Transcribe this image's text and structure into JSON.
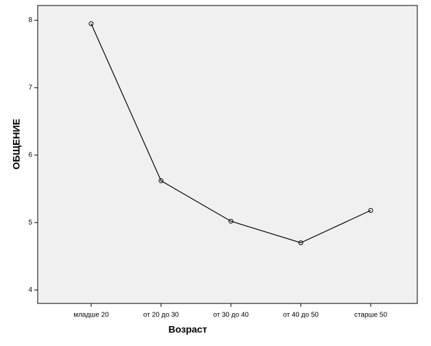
{
  "chart_data": {
    "type": "line",
    "x_label": "Возраст",
    "y_label": "ОБЩЕНИЕ",
    "categories": [
      "младше 20",
      "от 20 до 30",
      "от 30 до 40",
      "от 40 до 50",
      "старше 50"
    ],
    "values": [
      7.95,
      5.62,
      5.02,
      4.7,
      5.18
    ],
    "color": "#000000",
    "ylim": [
      3.8,
      8.22
    ],
    "yticks": [
      4,
      5,
      6,
      7,
      8
    ],
    "grid": false
  }
}
